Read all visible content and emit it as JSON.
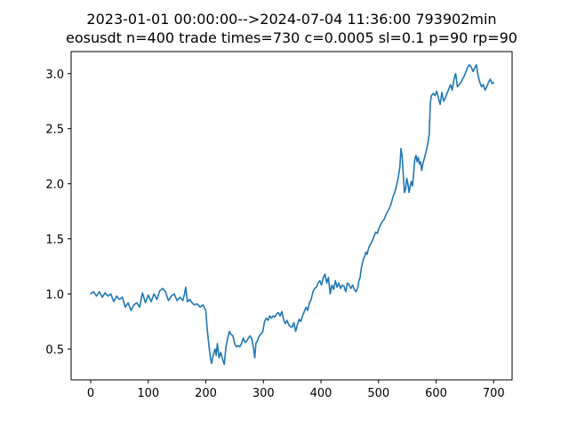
{
  "chart_data": {
    "type": "line",
    "title_line1": "2023-01-01 00:00:00-->2024-07-04 11:36:00    793902min",
    "title_line2": "eosusdt  n=400   trade times=730 c=0.0005 sl=0.1 p=90 rp=90",
    "xlabel": "",
    "ylabel": "",
    "xlim": [
      -34,
      732
    ],
    "ylim": [
      0.22,
      3.2
    ],
    "xticks": [
      0,
      100,
      200,
      300,
      400,
      500,
      600,
      700
    ],
    "xtick_labels": [
      "0",
      "100",
      "200",
      "300",
      "400",
      "500",
      "600",
      "700"
    ],
    "yticks": [
      0.5,
      1.0,
      1.5,
      2.0,
      2.5,
      3.0
    ],
    "ytick_labels": [
      "0.5",
      "1.0",
      "1.5",
      "2.0",
      "2.5",
      "3.0"
    ],
    "grid": false,
    "series": [
      {
        "color": "#1f77b4",
        "points": [
          [
            0,
            1.0
          ],
          [
            5,
            1.02
          ],
          [
            10,
            0.98
          ],
          [
            15,
            1.02
          ],
          [
            20,
            0.97
          ],
          [
            25,
            1.01
          ],
          [
            30,
            0.98
          ],
          [
            35,
            1.0
          ],
          [
            40,
            0.93
          ],
          [
            45,
            0.98
          ],
          [
            50,
            0.95
          ],
          [
            55,
            0.97
          ],
          [
            60,
            0.88
          ],
          [
            65,
            0.92
          ],
          [
            70,
            0.85
          ],
          [
            75,
            0.9
          ],
          [
            80,
            0.92
          ],
          [
            85,
            0.88
          ],
          [
            90,
            1.01
          ],
          [
            95,
            0.92
          ],
          [
            100,
            0.99
          ],
          [
            105,
            0.93
          ],
          [
            110,
            1.0
          ],
          [
            115,
            0.95
          ],
          [
            120,
            1.03
          ],
          [
            125,
            1.05
          ],
          [
            130,
            1.02
          ],
          [
            135,
            0.94
          ],
          [
            140,
            0.98
          ],
          [
            145,
            1.0
          ],
          [
            150,
            0.94
          ],
          [
            155,
            0.97
          ],
          [
            160,
            0.94
          ],
          [
            163,
            1.0
          ],
          [
            165,
            1.06
          ],
          [
            168,
            0.93
          ],
          [
            172,
            0.95
          ],
          [
            176,
            0.92
          ],
          [
            180,
            0.9
          ],
          [
            185,
            0.91
          ],
          [
            190,
            0.88
          ],
          [
            195,
            0.9
          ],
          [
            200,
            0.85
          ],
          [
            202,
            0.7
          ],
          [
            205,
            0.55
          ],
          [
            208,
            0.42
          ],
          [
            210,
            0.37
          ],
          [
            213,
            0.45
          ],
          [
            216,
            0.5
          ],
          [
            218,
            0.44
          ],
          [
            220,
            0.55
          ],
          [
            223,
            0.42
          ],
          [
            226,
            0.47
          ],
          [
            229,
            0.41
          ],
          [
            232,
            0.36
          ],
          [
            235,
            0.52
          ],
          [
            238,
            0.6
          ],
          [
            241,
            0.66
          ],
          [
            244,
            0.63
          ],
          [
            247,
            0.62
          ],
          [
            250,
            0.55
          ],
          [
            253,
            0.52
          ],
          [
            256,
            0.53
          ],
          [
            259,
            0.52
          ],
          [
            262,
            0.55
          ],
          [
            265,
            0.6
          ],
          [
            268,
            0.56
          ],
          [
            271,
            0.57
          ],
          [
            274,
            0.6
          ],
          [
            277,
            0.62
          ],
          [
            280,
            0.59
          ],
          [
            283,
            0.5
          ],
          [
            285,
            0.42
          ],
          [
            287,
            0.55
          ],
          [
            290,
            0.58
          ],
          [
            293,
            0.62
          ],
          [
            296,
            0.64
          ],
          [
            299,
            0.66
          ],
          [
            302,
            0.75
          ],
          [
            305,
            0.78
          ],
          [
            308,
            0.76
          ],
          [
            311,
            0.8
          ],
          [
            314,
            0.78
          ],
          [
            317,
            0.8
          ],
          [
            320,
            0.79
          ],
          [
            323,
            0.82
          ],
          [
            326,
            0.83
          ],
          [
            329,
            0.8
          ],
          [
            332,
            0.84
          ],
          [
            335,
            0.77
          ],
          [
            338,
            0.73
          ],
          [
            341,
            0.76
          ],
          [
            344,
            0.72
          ],
          [
            347,
            0.7
          ],
          [
            350,
            0.7
          ],
          [
            353,
            0.74
          ],
          [
            356,
            0.66
          ],
          [
            359,
            0.72
          ],
          [
            362,
            0.77
          ],
          [
            365,
            0.75
          ],
          [
            368,
            0.8
          ],
          [
            371,
            0.84
          ],
          [
            374,
            0.88
          ],
          [
            377,
            0.85
          ],
          [
            380,
            0.92
          ],
          [
            383,
            0.95
          ],
          [
            386,
            1.02
          ],
          [
            389,
            1.05
          ],
          [
            392,
            1.06
          ],
          [
            395,
            1.1
          ],
          [
            398,
            1.12
          ],
          [
            401,
            1.08
          ],
          [
            404,
            1.15
          ],
          [
            407,
            1.18
          ],
          [
            410,
            1.1
          ],
          [
            413,
            1.15
          ],
          [
            416,
            1.0
          ],
          [
            419,
            1.08
          ],
          [
            422,
            1.04
          ],
          [
            425,
            1.12
          ],
          [
            428,
            1.06
          ],
          [
            431,
            1.1
          ],
          [
            434,
            1.05
          ],
          [
            437,
            1.08
          ],
          [
            440,
            1.07
          ],
          [
            443,
            1.02
          ],
          [
            446,
            1.1
          ],
          [
            449,
            1.08
          ],
          [
            452,
            1.05
          ],
          [
            455,
            1.08
          ],
          [
            458,
            1.04
          ],
          [
            461,
            1.02
          ],
          [
            464,
            1.06
          ],
          [
            466,
            1.12
          ],
          [
            468,
            1.15
          ],
          [
            470,
            1.23
          ],
          [
            472,
            1.28
          ],
          [
            474,
            1.32
          ],
          [
            476,
            1.34
          ],
          [
            478,
            1.38
          ],
          [
            480,
            1.36
          ],
          [
            483,
            1.42
          ],
          [
            486,
            1.45
          ],
          [
            489,
            1.48
          ],
          [
            492,
            1.52
          ],
          [
            495,
            1.56
          ],
          [
            498,
            1.55
          ],
          [
            501,
            1.6
          ],
          [
            504,
            1.63
          ],
          [
            507,
            1.66
          ],
          [
            510,
            1.68
          ],
          [
            513,
            1.72
          ],
          [
            516,
            1.75
          ],
          [
            519,
            1.78
          ],
          [
            522,
            1.82
          ],
          [
            525,
            1.88
          ],
          [
            528,
            1.92
          ],
          [
            531,
            1.98
          ],
          [
            534,
            2.05
          ],
          [
            537,
            2.15
          ],
          [
            539,
            2.32
          ],
          [
            541,
            2.25
          ],
          [
            543,
            2.08
          ],
          [
            545,
            1.92
          ],
          [
            547,
            1.95
          ],
          [
            549,
            2.05
          ],
          [
            551,
            2.0
          ],
          [
            553,
            1.92
          ],
          [
            555,
            1.98
          ],
          [
            557,
            2.02
          ],
          [
            559,
            1.98
          ],
          [
            561,
            2.1
          ],
          [
            563,
            2.22
          ],
          [
            565,
            2.26
          ],
          [
            567,
            2.2
          ],
          [
            569,
            2.24
          ],
          [
            571,
            2.18
          ],
          [
            573,
            2.2
          ],
          [
            575,
            2.12
          ],
          [
            577,
            2.18
          ],
          [
            580,
            2.24
          ],
          [
            583,
            2.3
          ],
          [
            586,
            2.38
          ],
          [
            588,
            2.45
          ],
          [
            590,
            2.74
          ],
          [
            592,
            2.8
          ],
          [
            595,
            2.82
          ],
          [
            598,
            2.8
          ],
          [
            601,
            2.84
          ],
          [
            604,
            2.78
          ],
          [
            607,
            2.72
          ],
          [
            610,
            2.83
          ],
          [
            613,
            2.75
          ],
          [
            616,
            2.78
          ],
          [
            619,
            2.82
          ],
          [
            622,
            2.86
          ],
          [
            625,
            2.9
          ],
          [
            628,
            2.85
          ],
          [
            631,
            2.95
          ],
          [
            634,
            3.0
          ],
          [
            637,
            2.88
          ],
          [
            640,
            2.9
          ],
          [
            643,
            2.92
          ],
          [
            646,
            2.95
          ],
          [
            649,
            2.98
          ],
          [
            652,
            3.02
          ],
          [
            655,
            3.06
          ],
          [
            658,
            3.08
          ],
          [
            661,
            3.06
          ],
          [
            664,
            3.02
          ],
          [
            667,
            3.05
          ],
          [
            670,
            3.08
          ],
          [
            673,
            2.98
          ],
          [
            676,
            2.92
          ],
          [
            679,
            2.88
          ],
          [
            682,
            2.9
          ],
          [
            685,
            2.85
          ],
          [
            688,
            2.88
          ],
          [
            691,
            2.92
          ],
          [
            694,
            2.95
          ],
          [
            697,
            2.91
          ],
          [
            700,
            2.92
          ]
        ]
      }
    ]
  }
}
